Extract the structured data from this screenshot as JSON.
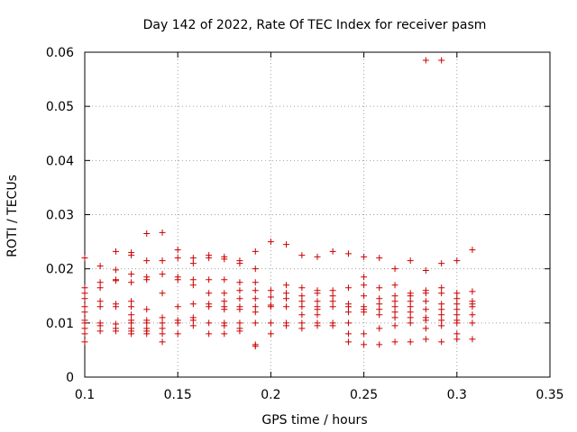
{
  "chart_data": {
    "type": "scatter",
    "title": "Day 142 of 2022, Rate Of TEC Index for receiver pasm",
    "xlabel": "GPS time / hours",
    "ylabel": "ROTI / TECUs",
    "xlim": [
      0.1,
      0.35
    ],
    "ylim": [
      0,
      0.06
    ],
    "xticks": [
      0.1,
      0.15,
      0.2,
      0.25,
      0.3,
      0.35
    ],
    "xtick_labels": [
      "0.1",
      "0.15",
      "0.2",
      "0.25",
      "0.3",
      "0.35"
    ],
    "yticks": [
      0,
      0.01,
      0.02,
      0.03,
      0.04,
      0.05,
      0.06
    ],
    "ytick_labels": [
      "0",
      "0.01",
      "0.02",
      "0.03",
      "0.04",
      "0.05",
      "0.06"
    ],
    "grid": true,
    "marker": "+",
    "color": "#cc0000",
    "series": [
      {
        "name": "ROTI",
        "points": [
          [
            0.1,
            0.022
          ],
          [
            0.1,
            0.0165
          ],
          [
            0.1,
            0.0155
          ],
          [
            0.1,
            0.0145
          ],
          [
            0.1,
            0.013
          ],
          [
            0.1,
            0.012
          ],
          [
            0.1,
            0.0105
          ],
          [
            0.1,
            0.01
          ],
          [
            0.1,
            0.009
          ],
          [
            0.1,
            0.008
          ],
          [
            0.1,
            0.0065
          ],
          [
            0.1083,
            0.0205
          ],
          [
            0.1083,
            0.0175
          ],
          [
            0.1083,
            0.0165
          ],
          [
            0.1083,
            0.014
          ],
          [
            0.1083,
            0.013
          ],
          [
            0.1083,
            0.01
          ],
          [
            0.1083,
            0.0095
          ],
          [
            0.1083,
            0.0085
          ],
          [
            0.1167,
            0.0232
          ],
          [
            0.1167,
            0.0198
          ],
          [
            0.1167,
            0.018
          ],
          [
            0.1167,
            0.0178
          ],
          [
            0.1167,
            0.0135
          ],
          [
            0.1167,
            0.013
          ],
          [
            0.1167,
            0.0098
          ],
          [
            0.1167,
            0.009
          ],
          [
            0.1167,
            0.0085
          ],
          [
            0.125,
            0.023
          ],
          [
            0.125,
            0.0225
          ],
          [
            0.125,
            0.019
          ],
          [
            0.125,
            0.0175
          ],
          [
            0.125,
            0.014
          ],
          [
            0.125,
            0.013
          ],
          [
            0.125,
            0.0115
          ],
          [
            0.125,
            0.0105
          ],
          [
            0.125,
            0.01
          ],
          [
            0.125,
            0.009
          ],
          [
            0.125,
            0.0085
          ],
          [
            0.125,
            0.008
          ],
          [
            0.1333,
            0.0265
          ],
          [
            0.1333,
            0.0215
          ],
          [
            0.1333,
            0.0185
          ],
          [
            0.1333,
            0.018
          ],
          [
            0.1333,
            0.0125
          ],
          [
            0.1333,
            0.0105
          ],
          [
            0.1333,
            0.01
          ],
          [
            0.1333,
            0.009
          ],
          [
            0.1333,
            0.0085
          ],
          [
            0.1333,
            0.008
          ],
          [
            0.1417,
            0.0267
          ],
          [
            0.1417,
            0.0215
          ],
          [
            0.1417,
            0.019
          ],
          [
            0.1417,
            0.0155
          ],
          [
            0.1417,
            0.011
          ],
          [
            0.1417,
            0.01
          ],
          [
            0.1417,
            0.009
          ],
          [
            0.1417,
            0.008
          ],
          [
            0.1417,
            0.0065
          ],
          [
            0.15,
            0.0235
          ],
          [
            0.15,
            0.022
          ],
          [
            0.15,
            0.0185
          ],
          [
            0.15,
            0.018
          ],
          [
            0.15,
            0.013
          ],
          [
            0.15,
            0.0105
          ],
          [
            0.15,
            0.01
          ],
          [
            0.15,
            0.008
          ],
          [
            0.1583,
            0.022
          ],
          [
            0.1583,
            0.021
          ],
          [
            0.1583,
            0.018
          ],
          [
            0.1583,
            0.017
          ],
          [
            0.1583,
            0.0135
          ],
          [
            0.1583,
            0.011
          ],
          [
            0.1583,
            0.0105
          ],
          [
            0.1583,
            0.0095
          ],
          [
            0.1667,
            0.0225
          ],
          [
            0.1667,
            0.022
          ],
          [
            0.1667,
            0.018
          ],
          [
            0.1667,
            0.0155
          ],
          [
            0.1667,
            0.0135
          ],
          [
            0.1667,
            0.013
          ],
          [
            0.1667,
            0.01
          ],
          [
            0.1667,
            0.008
          ],
          [
            0.175,
            0.0222
          ],
          [
            0.175,
            0.0218
          ],
          [
            0.175,
            0.018
          ],
          [
            0.175,
            0.0155
          ],
          [
            0.175,
            0.014
          ],
          [
            0.175,
            0.013
          ],
          [
            0.175,
            0.0125
          ],
          [
            0.175,
            0.01
          ],
          [
            0.175,
            0.0095
          ],
          [
            0.175,
            0.008
          ],
          [
            0.1833,
            0.0215
          ],
          [
            0.1833,
            0.021
          ],
          [
            0.1833,
            0.0175
          ],
          [
            0.1833,
            0.016
          ],
          [
            0.1833,
            0.0145
          ],
          [
            0.1833,
            0.013
          ],
          [
            0.1833,
            0.0125
          ],
          [
            0.1833,
            0.01
          ],
          [
            0.1833,
            0.009
          ],
          [
            0.1833,
            0.0085
          ],
          [
            0.1917,
            0.0232
          ],
          [
            0.1917,
            0.02
          ],
          [
            0.1917,
            0.0175
          ],
          [
            0.1917,
            0.016
          ],
          [
            0.1917,
            0.0145
          ],
          [
            0.1917,
            0.013
          ],
          [
            0.1917,
            0.012
          ],
          [
            0.1917,
            0.01
          ],
          [
            0.1917,
            0.006
          ],
          [
            0.1917,
            0.0057
          ],
          [
            0.2,
            0.025
          ],
          [
            0.2,
            0.016
          ],
          [
            0.2,
            0.0148
          ],
          [
            0.2,
            0.0133
          ],
          [
            0.2,
            0.013
          ],
          [
            0.2,
            0.01
          ],
          [
            0.2,
            0.008
          ],
          [
            0.2083,
            0.0245
          ],
          [
            0.2083,
            0.017
          ],
          [
            0.2083,
            0.0155
          ],
          [
            0.2083,
            0.0145
          ],
          [
            0.2083,
            0.013
          ],
          [
            0.2083,
            0.01
          ],
          [
            0.2083,
            0.0095
          ],
          [
            0.2167,
            0.0225
          ],
          [
            0.2167,
            0.0165
          ],
          [
            0.2167,
            0.015
          ],
          [
            0.2167,
            0.014
          ],
          [
            0.2167,
            0.013
          ],
          [
            0.2167,
            0.0115
          ],
          [
            0.2167,
            0.01
          ],
          [
            0.2167,
            0.009
          ],
          [
            0.225,
            0.0222
          ],
          [
            0.225,
            0.016
          ],
          [
            0.225,
            0.0155
          ],
          [
            0.225,
            0.014
          ],
          [
            0.225,
            0.013
          ],
          [
            0.225,
            0.0125
          ],
          [
            0.225,
            0.0115
          ],
          [
            0.225,
            0.01
          ],
          [
            0.225,
            0.0095
          ],
          [
            0.2333,
            0.0232
          ],
          [
            0.2333,
            0.016
          ],
          [
            0.2333,
            0.015
          ],
          [
            0.2333,
            0.014
          ],
          [
            0.2333,
            0.013
          ],
          [
            0.2333,
            0.01
          ],
          [
            0.2333,
            0.0095
          ],
          [
            0.2417,
            0.0228
          ],
          [
            0.2417,
            0.0165
          ],
          [
            0.2417,
            0.0135
          ],
          [
            0.2417,
            0.013
          ],
          [
            0.2417,
            0.012
          ],
          [
            0.2417,
            0.01
          ],
          [
            0.2417,
            0.008
          ],
          [
            0.2417,
            0.0065
          ],
          [
            0.25,
            0.0222
          ],
          [
            0.25,
            0.0185
          ],
          [
            0.25,
            0.017
          ],
          [
            0.25,
            0.015
          ],
          [
            0.25,
            0.013
          ],
          [
            0.25,
            0.0125
          ],
          [
            0.25,
            0.012
          ],
          [
            0.25,
            0.008
          ],
          [
            0.25,
            0.006
          ],
          [
            0.2583,
            0.022
          ],
          [
            0.2583,
            0.0165
          ],
          [
            0.2583,
            0.0145
          ],
          [
            0.2583,
            0.0135
          ],
          [
            0.2583,
            0.0125
          ],
          [
            0.2583,
            0.0115
          ],
          [
            0.2583,
            0.009
          ],
          [
            0.2583,
            0.006
          ],
          [
            0.2667,
            0.02
          ],
          [
            0.2667,
            0.017
          ],
          [
            0.2667,
            0.015
          ],
          [
            0.2667,
            0.014
          ],
          [
            0.2667,
            0.013
          ],
          [
            0.2667,
            0.012
          ],
          [
            0.2667,
            0.011
          ],
          [
            0.2667,
            0.0095
          ],
          [
            0.2667,
            0.0065
          ],
          [
            0.275,
            0.0215
          ],
          [
            0.275,
            0.0155
          ],
          [
            0.275,
            0.015
          ],
          [
            0.275,
            0.014
          ],
          [
            0.275,
            0.013
          ],
          [
            0.275,
            0.012
          ],
          [
            0.275,
            0.011
          ],
          [
            0.275,
            0.01
          ],
          [
            0.275,
            0.0065
          ],
          [
            0.2833,
            0.0585
          ],
          [
            0.2833,
            0.0197
          ],
          [
            0.2833,
            0.016
          ],
          [
            0.2833,
            0.0155
          ],
          [
            0.2833,
            0.014
          ],
          [
            0.2833,
            0.0125
          ],
          [
            0.2833,
            0.011
          ],
          [
            0.2833,
            0.0105
          ],
          [
            0.2833,
            0.009
          ],
          [
            0.2833,
            0.007
          ],
          [
            0.2917,
            0.0585
          ],
          [
            0.2917,
            0.021
          ],
          [
            0.2917,
            0.0165
          ],
          [
            0.2917,
            0.0155
          ],
          [
            0.2917,
            0.0135
          ],
          [
            0.2917,
            0.0125
          ],
          [
            0.2917,
            0.0115
          ],
          [
            0.2917,
            0.0105
          ],
          [
            0.2917,
            0.0095
          ],
          [
            0.2917,
            0.0065
          ],
          [
            0.3,
            0.0215
          ],
          [
            0.3,
            0.0155
          ],
          [
            0.3,
            0.0145
          ],
          [
            0.3,
            0.0135
          ],
          [
            0.3,
            0.0125
          ],
          [
            0.3,
            0.0115
          ],
          [
            0.3,
            0.0105
          ],
          [
            0.3,
            0.01
          ],
          [
            0.3,
            0.008
          ],
          [
            0.3,
            0.007
          ],
          [
            0.3083,
            0.0235
          ],
          [
            0.3083,
            0.0158
          ],
          [
            0.3083,
            0.014
          ],
          [
            0.3083,
            0.0135
          ],
          [
            0.3083,
            0.013
          ],
          [
            0.3083,
            0.0115
          ],
          [
            0.3083,
            0.01
          ],
          [
            0.3083,
            0.007
          ]
        ]
      }
    ]
  }
}
